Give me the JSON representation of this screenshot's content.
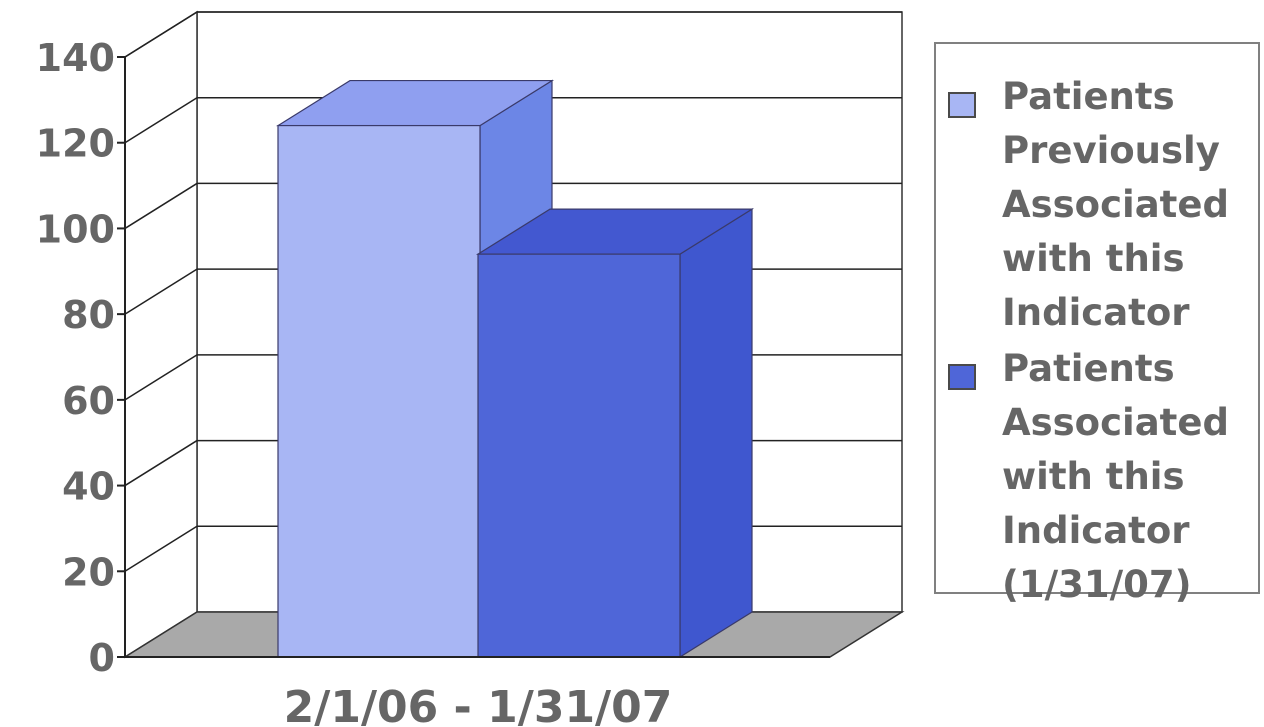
{
  "chart_data": {
    "type": "bar",
    "categories": [
      "2/1/06 - 1/31/07"
    ],
    "series": [
      {
        "name": "Patients\nPreviously\nAssociated\nwith this\nIndicator",
        "values": [
          124
        ]
      },
      {
        "name": "Patients\nAssociated\nwith this\nIndicator\n(1/31/07)",
        "values": [
          94
        ]
      }
    ],
    "title": "",
    "xlabel": "",
    "ylabel": "",
    "ylim": [
      0,
      140
    ],
    "yticks": [
      0,
      20,
      40,
      60,
      80,
      100,
      120,
      140
    ],
    "grid": true,
    "three_d": true,
    "legend": "right",
    "colors": {
      "series1": "#a8b6f4",
      "series2": "#4f66d8",
      "floor": "#a9a9a9",
      "gridline": "#222222",
      "text": "#666666"
    }
  }
}
